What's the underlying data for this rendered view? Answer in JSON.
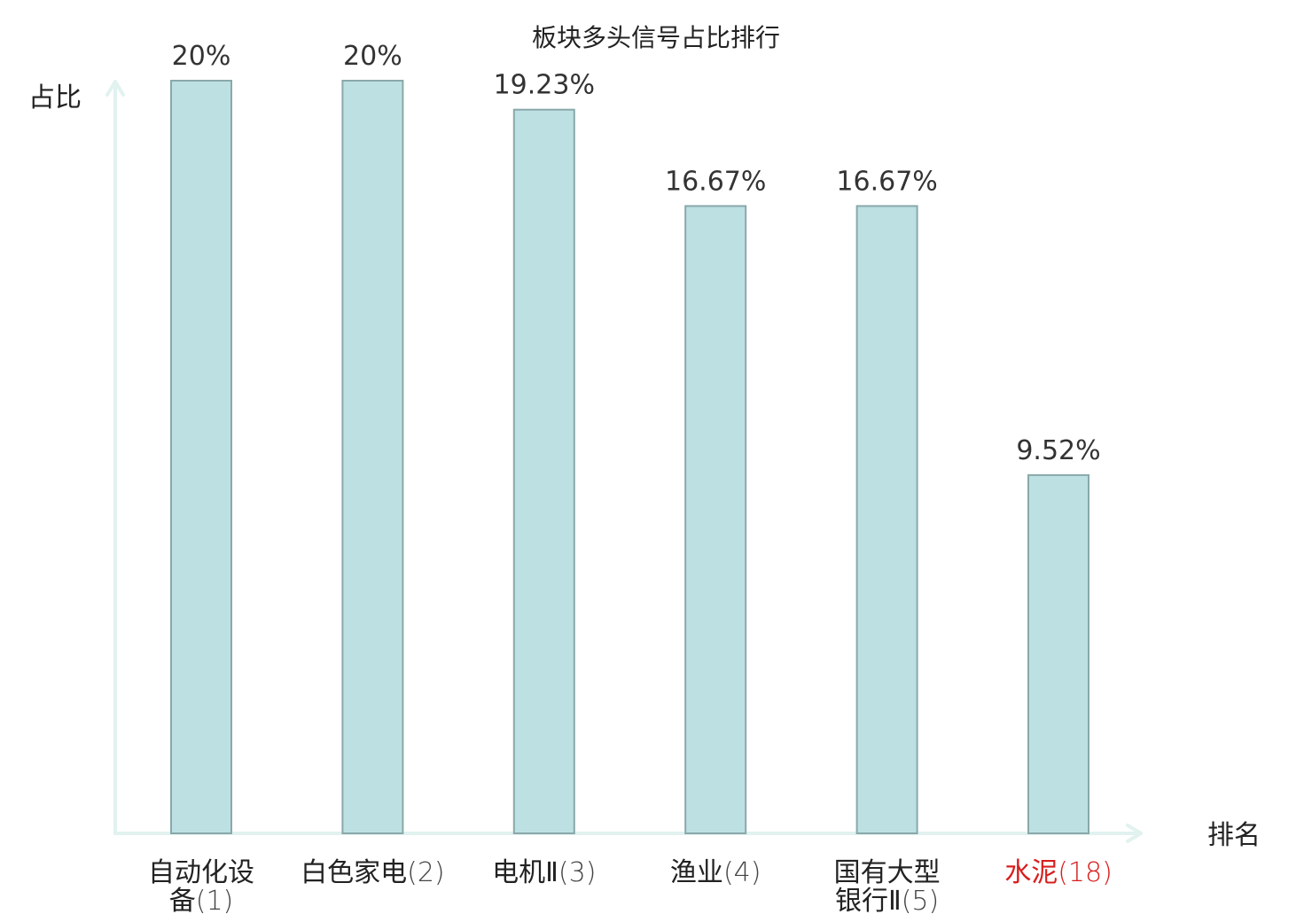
{
  "chart_data": {
    "type": "bar",
    "title": "板块多头信号占比排行",
    "ylabel": "占比",
    "xlabel": "排名",
    "ylim": [
      0,
      20
    ],
    "grid": false,
    "legend": "none",
    "colors": {
      "bar_fill": "#bde0e3",
      "bar_stroke": "#8aa8aa",
      "axis": "#e1f2ef",
      "highlight_text": "#d81e1e"
    },
    "categories": [
      {
        "lines": [
          {
            "name": "自动化设",
            "rank": ""
          },
          {
            "name": "备",
            "rank": "(1)"
          }
        ],
        "highlight": false
      },
      {
        "lines": [
          {
            "name": "白色家电",
            "rank": "(2)"
          }
        ],
        "highlight": false
      },
      {
        "lines": [
          {
            "name": "电机Ⅱ",
            "rank": "(3)"
          }
        ],
        "highlight": false
      },
      {
        "lines": [
          {
            "name": "渔业",
            "rank": "(4)"
          }
        ],
        "highlight": false
      },
      {
        "lines": [
          {
            "name": "国有大型",
            "rank": ""
          },
          {
            "name": "银行Ⅱ",
            "rank": "(5)"
          }
        ],
        "highlight": false
      },
      {
        "lines": [
          {
            "name": "水泥",
            "rank": "(18)"
          }
        ],
        "highlight": true
      }
    ],
    "values": [
      20,
      20,
      19.23,
      16.67,
      16.67,
      9.52
    ],
    "value_labels": [
      "20%",
      "20%",
      "19.23%",
      "16.67%",
      "16.67%",
      "9.52%"
    ]
  }
}
